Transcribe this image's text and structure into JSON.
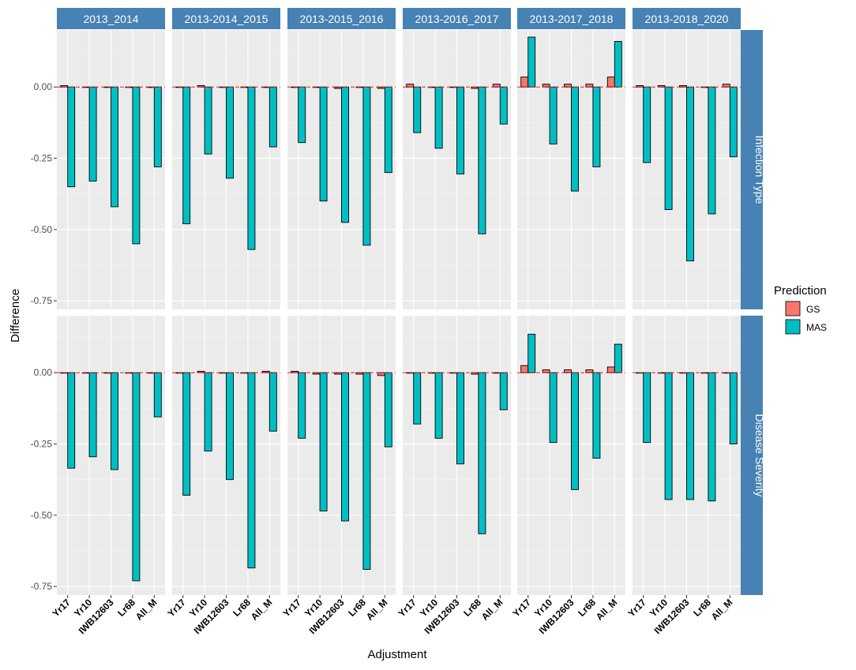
{
  "chart_data": {
    "type": "bar",
    "xlabel": "Adjustment",
    "ylabel": "Difference",
    "ylim": [
      -0.78,
      0.2
    ],
    "y_ticks": [
      0.0,
      -0.25,
      -0.5,
      -0.75
    ],
    "y_tick_labels": [
      "0.00",
      "-0.25",
      "-0.50",
      "-0.75"
    ],
    "reference_line": 0,
    "categories": [
      "Yr17",
      "Yr10",
      "IWB12603",
      "Lr68",
      "All_M"
    ],
    "columns": [
      "2013_2014",
      "2013-2014_2015",
      "2013-2015_2016",
      "2013-2016_2017",
      "2013-2017_2018",
      "2013-2018_2020"
    ],
    "rows": [
      "Infection Type",
      "Disease Severity"
    ],
    "legend": {
      "title": "Prediction",
      "position": "right",
      "entries": [
        {
          "name": "GS",
          "color": "#F8766D"
        },
        {
          "name": "MAS",
          "color": "#00BFC4"
        }
      ]
    },
    "panels": [
      [
        {
          "GS": [
            0.005,
            0.0,
            0.0,
            0.0,
            0.0
          ],
          "MAS": [
            -0.35,
            -0.33,
            -0.42,
            -0.55,
            -0.28
          ]
        },
        {
          "GS": [
            0.0,
            0.005,
            0.0,
            0.0,
            0.0
          ],
          "MAS": [
            -0.48,
            -0.235,
            -0.32,
            -0.57,
            -0.21
          ]
        },
        {
          "GS": [
            0.0,
            0.0,
            -0.005,
            0.0,
            -0.005
          ],
          "MAS": [
            -0.195,
            -0.4,
            -0.475,
            -0.555,
            -0.3
          ]
        },
        {
          "GS": [
            0.01,
            0.0,
            0.0,
            -0.005,
            0.01
          ],
          "MAS": [
            -0.16,
            -0.215,
            -0.305,
            -0.515,
            -0.13
          ]
        },
        {
          "GS": [
            0.035,
            0.01,
            0.01,
            0.01,
            0.035
          ],
          "MAS": [
            0.175,
            -0.2,
            -0.365,
            -0.28,
            0.16
          ]
        },
        {
          "GS": [
            0.005,
            0.005,
            0.005,
            0.0,
            0.01
          ],
          "MAS": [
            -0.265,
            -0.43,
            -0.61,
            -0.445,
            -0.245
          ]
        }
      ],
      [
        {
          "GS": [
            0.0,
            0.0,
            0.0,
            0.0,
            0.0
          ],
          "MAS": [
            -0.335,
            -0.295,
            -0.34,
            -0.73,
            -0.155
          ]
        },
        {
          "GS": [
            0.0,
            0.005,
            0.0,
            0.0,
            0.005
          ],
          "MAS": [
            -0.43,
            -0.275,
            -0.375,
            -0.685,
            -0.205
          ]
        },
        {
          "GS": [
            0.005,
            -0.005,
            -0.005,
            -0.005,
            -0.01
          ],
          "MAS": [
            -0.23,
            -0.485,
            -0.52,
            -0.69,
            -0.26
          ]
        },
        {
          "GS": [
            0.0,
            0.0,
            0.0,
            -0.005,
            0.0
          ],
          "MAS": [
            -0.18,
            -0.23,
            -0.32,
            -0.565,
            -0.13
          ]
        },
        {
          "GS": [
            0.025,
            0.01,
            0.01,
            0.01,
            0.02
          ],
          "MAS": [
            0.135,
            -0.245,
            -0.41,
            -0.3,
            0.1
          ]
        },
        {
          "GS": [
            0.0,
            0.0,
            0.0,
            0.0,
            0.0
          ],
          "MAS": [
            -0.245,
            -0.445,
            -0.445,
            -0.45,
            -0.25
          ]
        }
      ]
    ]
  }
}
